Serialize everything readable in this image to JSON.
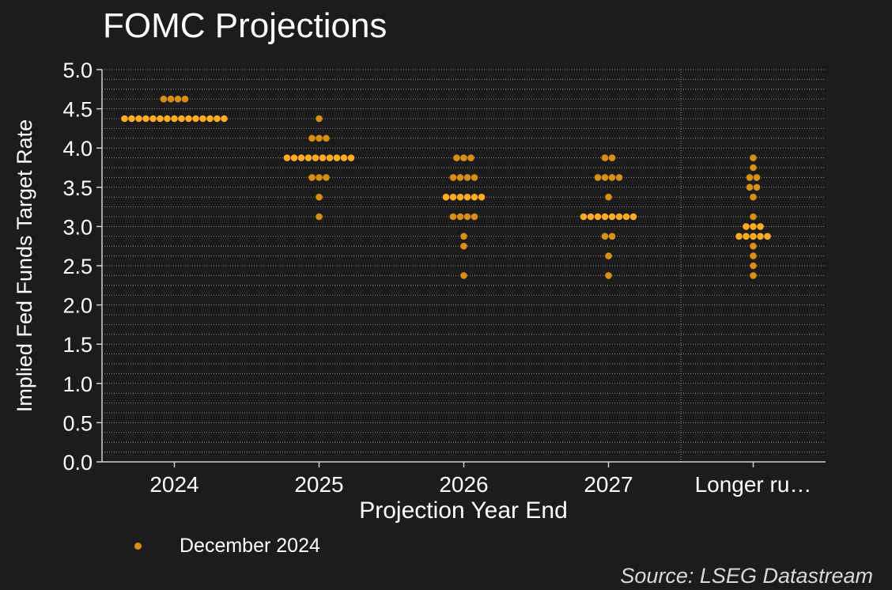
{
  "chart_data": {
    "type": "scatter",
    "title": "FOMC Projections",
    "xlabel": "Projection Year End",
    "ylabel": "Implied Fed Funds Target Rate",
    "categories": [
      "2024",
      "2025",
      "2026",
      "2027",
      "Longer ru…"
    ],
    "ylim": [
      0,
      5
    ],
    "yticks": [
      "0.0",
      "0.5",
      "1.0",
      "1.5",
      "2.0",
      "2.5",
      "3.0",
      "3.5",
      "4.0",
      "4.5",
      "5.0"
    ],
    "grid": true,
    "legend_position": "bottom-left",
    "series": [
      {
        "name": "December 2024",
        "color": "#d98f0f",
        "highlight_color": "#ffad1f",
        "points": [
          {
            "category": "2024",
            "y": 4.375,
            "count": 15
          },
          {
            "category": "2024",
            "y": 4.625,
            "count": 4
          },
          {
            "category": "2025",
            "y": 4.375,
            "count": 1
          },
          {
            "category": "2025",
            "y": 4.125,
            "count": 3
          },
          {
            "category": "2025",
            "y": 3.875,
            "count": 10
          },
          {
            "category": "2025",
            "y": 3.625,
            "count": 3
          },
          {
            "category": "2025",
            "y": 3.375,
            "count": 1
          },
          {
            "category": "2025",
            "y": 3.125,
            "count": 1
          },
          {
            "category": "2026",
            "y": 3.875,
            "count": 3
          },
          {
            "category": "2026",
            "y": 3.625,
            "count": 4
          },
          {
            "category": "2026",
            "y": 3.375,
            "count": 6
          },
          {
            "category": "2026",
            "y": 3.125,
            "count": 4
          },
          {
            "category": "2026",
            "y": 2.875,
            "count": 1
          },
          {
            "category": "2026",
            "y": 2.75,
            "count": 1
          },
          {
            "category": "2026",
            "y": 2.375,
            "count": 1
          },
          {
            "category": "2027",
            "y": 3.875,
            "count": 2
          },
          {
            "category": "2027",
            "y": 3.625,
            "count": 4
          },
          {
            "category": "2027",
            "y": 3.375,
            "count": 1
          },
          {
            "category": "2027",
            "y": 3.125,
            "count": 8
          },
          {
            "category": "2027",
            "y": 2.875,
            "count": 2
          },
          {
            "category": "2027",
            "y": 2.625,
            "count": 1
          },
          {
            "category": "2027",
            "y": 2.375,
            "count": 1
          },
          {
            "category": "Longer ru…",
            "y": 3.875,
            "count": 1
          },
          {
            "category": "Longer ru…",
            "y": 3.75,
            "count": 1
          },
          {
            "category": "Longer ru…",
            "y": 3.625,
            "count": 2
          },
          {
            "category": "Longer ru…",
            "y": 3.5,
            "count": 2
          },
          {
            "category": "Longer ru…",
            "y": 3.375,
            "count": 1
          },
          {
            "category": "Longer ru…",
            "y": 3.125,
            "count": 1
          },
          {
            "category": "Longer ru…",
            "y": 3.0,
            "count": 3
          },
          {
            "category": "Longer ru…",
            "y": 2.875,
            "count": 5
          },
          {
            "category": "Longer ru…",
            "y": 2.75,
            "count": 1
          },
          {
            "category": "Longer ru…",
            "y": 2.625,
            "count": 1
          },
          {
            "category": "Longer ru…",
            "y": 2.5,
            "count": 1
          },
          {
            "category": "Longer ru…",
            "y": 2.375,
            "count": 1
          }
        ]
      }
    ],
    "source": "Source: LSEG Datastream"
  }
}
